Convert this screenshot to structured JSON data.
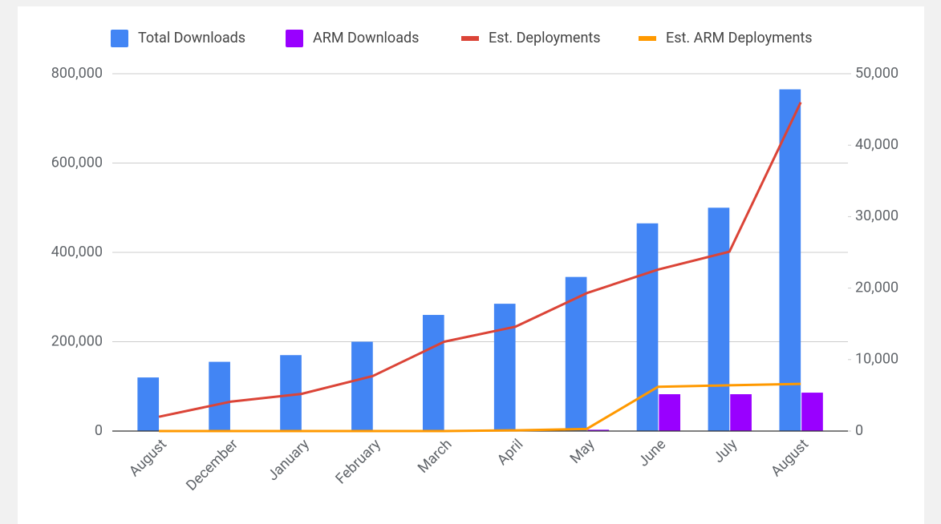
{
  "chart_data": {
    "type": "combo",
    "categories": [
      "August",
      "December",
      "January",
      "February",
      "March",
      "April",
      "May",
      "June",
      "July",
      "August"
    ],
    "series": [
      {
        "name": "Total Downloads",
        "type": "bar",
        "color": "#4285f4",
        "values": [
          120000,
          155000,
          170000,
          200000,
          260000,
          285000,
          345000,
          465000,
          500000,
          765000
        ]
      },
      {
        "name": "ARM Downloads",
        "type": "bar",
        "color": "#9900ff",
        "values": [
          0,
          0,
          0,
          0,
          0,
          0,
          3000,
          82500,
          82500,
          86000
        ]
      },
      {
        "name": "Est. Deployments",
        "type": "line",
        "axis": "y2",
        "color": "#db4437",
        "values": [
          2000,
          4100,
          5200,
          7700,
          12500,
          14600,
          19300,
          22600,
          25100,
          46000
        ]
      },
      {
        "name": "Est. ARM Deployments",
        "type": "line",
        "axis": "y2",
        "color": "#ff9900",
        "values": [
          0,
          0,
          0,
          0,
          0,
          100,
          300,
          6200,
          6400,
          6600
        ]
      }
    ],
    "ylim": [
      0,
      800000
    ],
    "yticks": [
      0,
      {
        "value": 200000,
        "label": "200,000"
      },
      {
        "value": 400000,
        "label": "400,000"
      },
      {
        "value": 600000,
        "label": "600,000"
      },
      {
        "value": 800000,
        "label": "800,000"
      }
    ],
    "y2lim": [
      0,
      50000
    ],
    "y2ticks": [
      0,
      {
        "value": 10000,
        "label": "10,000"
      },
      {
        "value": 20000,
        "label": "20,000"
      },
      {
        "value": 30000,
        "label": "30,000"
      },
      {
        "value": 40000,
        "label": "40,000"
      },
      {
        "value": 50000,
        "label": "50,000"
      }
    ],
    "grid": true,
    "legend": "top"
  }
}
